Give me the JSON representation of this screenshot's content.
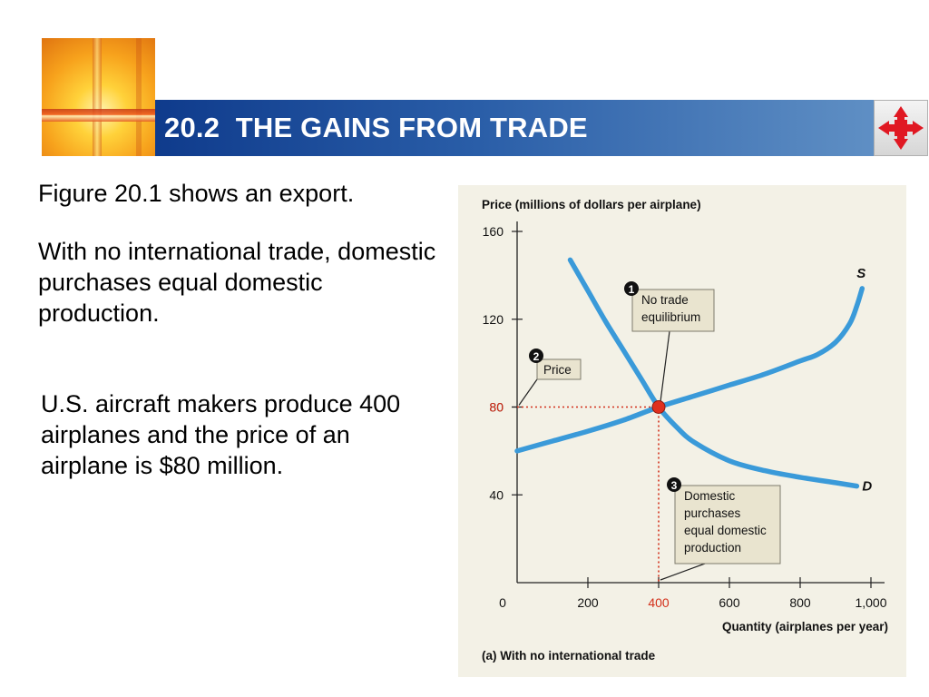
{
  "slide": {
    "title": "20.2  THE GAINS FROM TRADE",
    "paragraphs": [
      "Figure 20.1 shows an export.",
      "With no international trade, domestic purchases equal domestic production.",
      "U.S. aircraft makers produce 400 airplanes and the price of an airplane is $80 million."
    ]
  },
  "icons": {
    "logo": "sunburst-logo-icon",
    "navigation": "four-way-arrow-icon"
  },
  "colors": {
    "title_bar": "#1f4f9e",
    "curve": "#3a9ad9",
    "highlight": "#d32f1a",
    "chart_background": "#f3f1e6"
  },
  "chart_data": {
    "type": "line",
    "title": "(a) With no international trade",
    "ylabel": "Price (millions of dollars per airplane)",
    "xlabel": "Quantity (airplanes per year)",
    "xlim": [
      0,
      1000
    ],
    "ylim": [
      0,
      160
    ],
    "x_ticks": [
      0,
      200,
      400,
      600,
      800,
      1000
    ],
    "x_tick_labels": [
      "0",
      "200",
      "400",
      "600",
      "800",
      "1,000"
    ],
    "y_ticks": [
      40,
      80,
      120,
      160
    ],
    "y_tick_labels": [
      "40",
      "80",
      "120",
      "160"
    ],
    "grid": false,
    "series": [
      {
        "name": "S",
        "points": [
          [
            0,
            60
          ],
          [
            100,
            64.5
          ],
          [
            200,
            69
          ],
          [
            300,
            74
          ],
          [
            400,
            80
          ],
          [
            500,
            85
          ],
          [
            600,
            90
          ],
          [
            700,
            95
          ],
          [
            800,
            101
          ],
          [
            850,
            104
          ],
          [
            900,
            109.5
          ],
          [
            940,
            118
          ],
          [
            960,
            126
          ],
          [
            975,
            134
          ]
        ]
      },
      {
        "name": "D",
        "points": [
          [
            150,
            147
          ],
          [
            200,
            133
          ],
          [
            250,
            119
          ],
          [
            300,
            106
          ],
          [
            350,
            93
          ],
          [
            400,
            80
          ],
          [
            450,
            71
          ],
          [
            500,
            64
          ],
          [
            600,
            55.5
          ],
          [
            700,
            51
          ],
          [
            800,
            48
          ],
          [
            900,
            45.5
          ],
          [
            960,
            44
          ]
        ]
      }
    ],
    "equilibrium": {
      "x": 400,
      "y": 80,
      "x_label": "400",
      "y_label": "80"
    },
    "annotations": [
      {
        "number": "1",
        "text": "No trade equilibrium"
      },
      {
        "number": "2",
        "text": "Price"
      },
      {
        "number": "3",
        "text": "Domestic purchases equal domestic production"
      }
    ]
  }
}
